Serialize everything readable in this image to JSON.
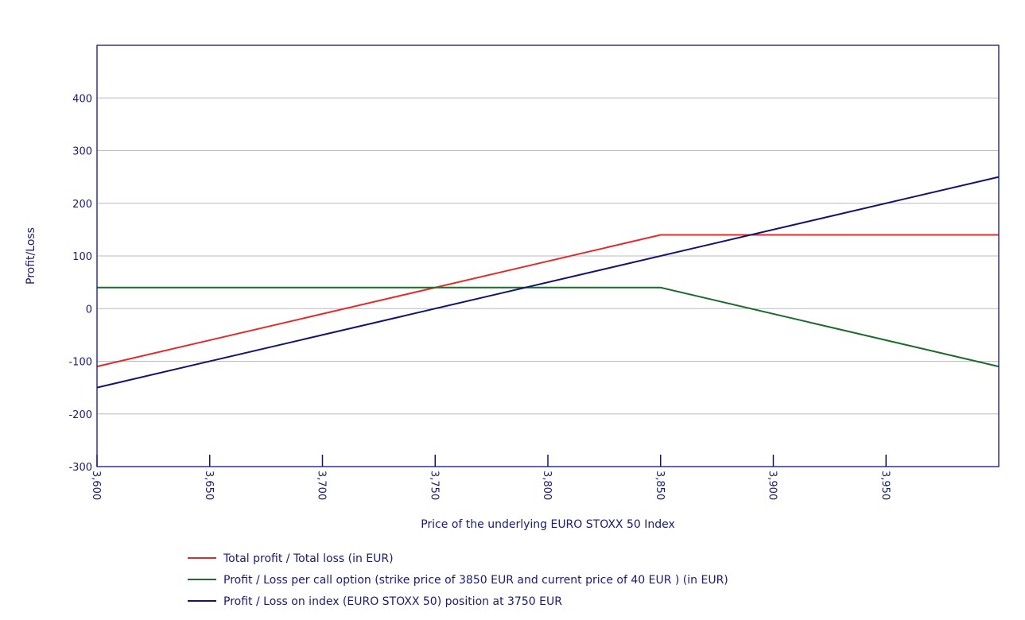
{
  "chart_data": {
    "type": "line",
    "title": "",
    "xlabel": "Price of the underlying EURO STOXX 50 Index",
    "ylabel": "Profit/Loss",
    "xlim": [
      3600,
      4000
    ],
    "ylim": [
      -300,
      500
    ],
    "x_ticks": [
      {
        "value": 3600,
        "label": "3,600"
      },
      {
        "value": 3650,
        "label": "3,650"
      },
      {
        "value": 3700,
        "label": "3,700"
      },
      {
        "value": 3750,
        "label": "3,750"
      },
      {
        "value": 3800,
        "label": "3,800"
      },
      {
        "value": 3850,
        "label": "3,850"
      },
      {
        "value": 3900,
        "label": "3,900"
      },
      {
        "value": 3950,
        "label": "3,950"
      }
    ],
    "y_ticks": [
      {
        "value": -300,
        "label": "-300"
      },
      {
        "value": -200,
        "label": "-200"
      },
      {
        "value": -100,
        "label": "-100"
      },
      {
        "value": 0,
        "label": "0"
      },
      {
        "value": 100,
        "label": "100"
      },
      {
        "value": 200,
        "label": "200"
      },
      {
        "value": 300,
        "label": "300"
      },
      {
        "value": 400,
        "label": "400"
      }
    ],
    "grid": true,
    "legend_position": "bottom",
    "series": [
      {
        "name": "Total profit / Total loss (in EUR)",
        "color": "#e32b2b",
        "points": [
          [
            3600,
            -110
          ],
          [
            3850,
            140
          ],
          [
            4000,
            140
          ]
        ]
      },
      {
        "name": "Profit / Loss per call option (strike price of 3850 EUR and current price of 40 EUR ) (in EUR)",
        "color": "#1e6b2e",
        "points": [
          [
            3600,
            40
          ],
          [
            3850,
            40
          ],
          [
            4000,
            -110
          ]
        ]
      },
      {
        "name": "Profit / Loss on index (EURO STOXX 50) position at 3750 EUR",
        "color": "#14146e",
        "points": [
          [
            3600,
            -150
          ],
          [
            4000,
            250
          ]
        ]
      }
    ]
  }
}
